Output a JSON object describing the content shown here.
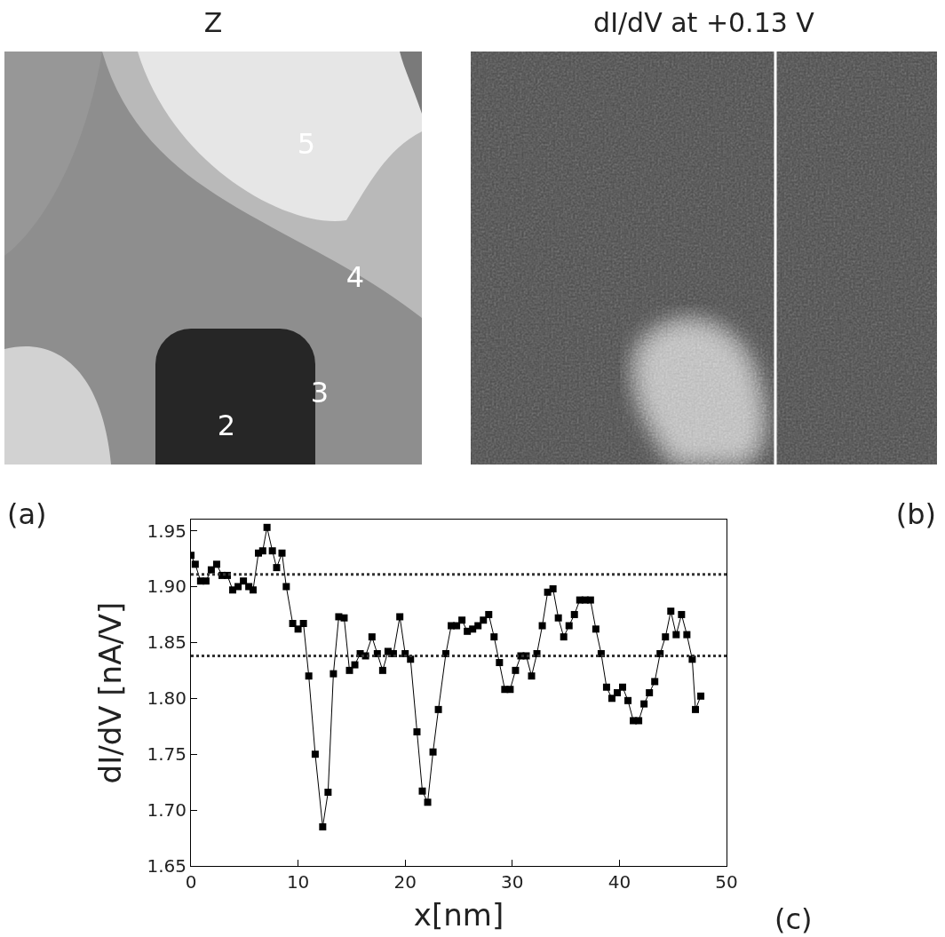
{
  "chart_data": [
    {
      "type": "image",
      "title": "Z",
      "panel": "(a)",
      "labels": [
        "5",
        "4",
        "3",
        "2"
      ]
    },
    {
      "type": "image",
      "title": "dI/dV at +0.13 V",
      "panel": "(b)"
    },
    {
      "type": "line",
      "panel": "(c)",
      "x_label": "x[nm]",
      "y_label": "dI/dV [nA/V]",
      "marker": "square",
      "line_style": "solid",
      "color": "#000000",
      "x": [
        0,
        0.4,
        0.9,
        1.4,
        1.9,
        2.4,
        2.9,
        3.4,
        3.9,
        4.4,
        4.9,
        5.4,
        5.8,
        6.3,
        6.7,
        7.1,
        7.6,
        8.0,
        8.5,
        8.9,
        9.5,
        10.0,
        10.5,
        11.0,
        11.6,
        12.3,
        12.8,
        13.3,
        13.8,
        14.3,
        14.8,
        15.3,
        15.8,
        16.3,
        16.9,
        17.4,
        17.9,
        18.4,
        18.9,
        19.5,
        20.0,
        20.5,
        21.1,
        21.6,
        22.1,
        22.6,
        23.1,
        23.8,
        24.3,
        24.8,
        25.3,
        25.8,
        26.3,
        26.8,
        27.3,
        27.8,
        28.3,
        28.8,
        29.3,
        29.8,
        30.3,
        30.8,
        31.3,
        31.8,
        32.3,
        32.8,
        33.3,
        33.8,
        34.3,
        34.8,
        35.3,
        35.8,
        36.3,
        36.8,
        37.3,
        37.8,
        38.3,
        38.8,
        39.3,
        39.8,
        40.3,
        40.8,
        41.3,
        41.8,
        42.3,
        42.8,
        43.3,
        43.8,
        44.3,
        44.8,
        45.3,
        45.8,
        46.3,
        46.8,
        47.1,
        47.6
      ],
      "values": [
        1.928,
        1.92,
        1.905,
        1.905,
        1.915,
        1.92,
        1.91,
        1.91,
        1.897,
        1.9,
        1.905,
        1.9,
        1.897,
        1.93,
        1.932,
        1.953,
        1.932,
        1.917,
        1.93,
        1.9,
        1.867,
        1.862,
        1.867,
        1.82,
        1.75,
        1.685,
        1.716,
        1.822,
        1.873,
        1.872,
        1.825,
        1.83,
        1.84,
        1.838,
        1.855,
        1.84,
        1.825,
        1.842,
        1.84,
        1.873,
        1.84,
        1.835,
        1.77,
        1.717,
        1.707,
        1.752,
        1.79,
        1.84,
        1.865,
        1.865,
        1.87,
        1.86,
        1.862,
        1.865,
        1.87,
        1.875,
        1.855,
        1.832,
        1.808,
        1.808,
        1.825,
        1.838,
        1.838,
        1.82,
        1.84,
        1.865,
        1.895,
        1.898,
        1.872,
        1.855,
        1.865,
        1.875,
        1.888,
        1.888,
        1.888,
        1.862,
        1.84,
        1.81,
        1.8,
        1.805,
        1.81,
        1.798,
        1.78,
        1.78,
        1.795,
        1.805,
        1.815,
        1.84,
        1.855,
        1.878,
        1.857,
        1.875,
        1.857,
        1.835,
        1.79,
        1.802
      ],
      "reference_lines": [
        1.911,
        1.838
      ],
      "xlim": [
        0,
        50
      ],
      "xticks": [
        0,
        10,
        20,
        30,
        40,
        50
      ],
      "ylim": [
        1.65,
        1.96
      ],
      "yticks": [
        1.65,
        {
          "value": 1.7,
          "label": "1.70"
        },
        1.75,
        {
          "value": 1.8,
          "label": "1.80"
        },
        1.85,
        {
          "value": 1.9,
          "label": "1.90"
        },
        1.95
      ],
      "grid": false
    }
  ]
}
